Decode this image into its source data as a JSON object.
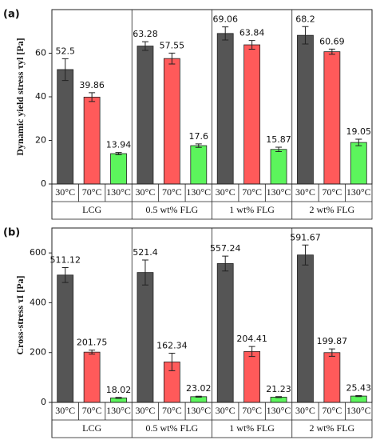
{
  "chart_data": [
    {
      "type": "bar",
      "panel_label": "(a)",
      "y_label": "Dynamic yield stress τyl [Pa]",
      "categories": [
        "LCG",
        "0.5 wt% FLG",
        "1 wt% FLG",
        "2 wt% FLG"
      ],
      "series": [
        {
          "name": "30°C",
          "color": "#555555",
          "values": [
            52.5,
            63.28,
            69.06,
            68.2
          ],
          "errors": [
            5,
            2,
            3,
            4
          ]
        },
        {
          "name": "70°C",
          "color": "#ff5a5a",
          "values": [
            39.86,
            57.55,
            63.84,
            60.69
          ],
          "errors": [
            2,
            2.5,
            2,
            1.2
          ]
        },
        {
          "name": "130°C",
          "color": "#5cf55c",
          "values": [
            13.94,
            17.6,
            15.87,
            19.05
          ],
          "errors": [
            0.5,
            0.8,
            1,
            1.5
          ]
        }
      ],
      "ylim": [
        0,
        80
      ],
      "yticks": [
        0,
        20,
        40,
        60
      ]
    },
    {
      "type": "bar",
      "panel_label": "(b)",
      "y_label": "Cross-stress τI [Pa]",
      "categories": [
        "LCG",
        "0.5 wt% FLG",
        "1 wt% FLG",
        "2 wt% FLG"
      ],
      "series": [
        {
          "name": "30°C",
          "color": "#555555",
          "values": [
            511.12,
            521.4,
            557.24,
            591.67
          ],
          "errors": [
            30,
            50,
            30,
            40
          ]
        },
        {
          "name": "70°C",
          "color": "#ff5a5a",
          "values": [
            201.75,
            162.34,
            204.41,
            199.87
          ],
          "errors": [
            8,
            35,
            20,
            15
          ]
        },
        {
          "name": "130°C",
          "color": "#5cf55c",
          "values": [
            18.02,
            23.02,
            21.23,
            25.43
          ],
          "errors": [
            2,
            2,
            2,
            2
          ]
        }
      ],
      "ylim": [
        0,
        700
      ],
      "yticks": [
        0,
        200,
        400,
        600
      ]
    }
  ]
}
